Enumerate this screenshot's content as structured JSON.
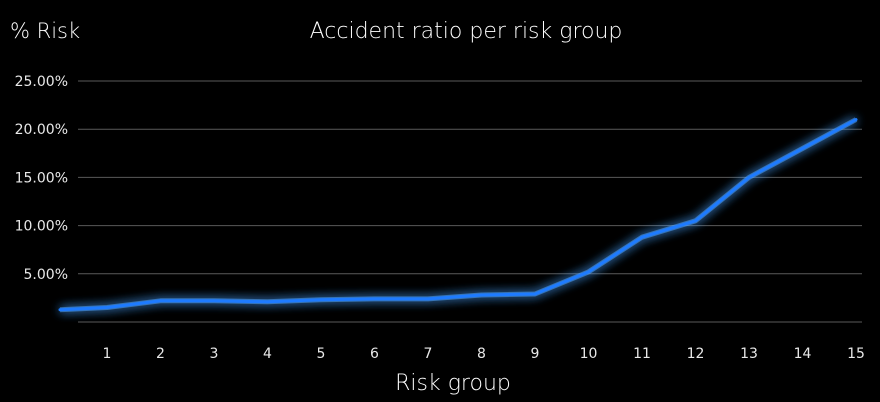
{
  "chart_data": {
    "type": "line",
    "title": "Accident ratio per risk group",
    "xlabel": "Risk group",
    "ylabel": "% Risk",
    "categories": [
      "1",
      "2",
      "3",
      "4",
      "5",
      "6",
      "7",
      "8",
      "9",
      "10",
      "11",
      "12",
      "13",
      "14",
      "15"
    ],
    "series": [
      {
        "values": [
          1.5,
          2.2,
          2.2,
          2.1,
          2.3,
          2.4,
          2.4,
          2.8,
          2.9,
          5.2,
          8.8,
          10.5,
          15.0,
          18.0,
          21.0
        ]
      }
    ],
    "yticks": [
      "5.00%",
      "10.00%",
      "15.00%",
      "20.00%",
      "25.00%"
    ],
    "ytick_values": [
      5,
      10,
      15,
      20,
      25
    ],
    "ylim": [
      0,
      25
    ],
    "grid": true,
    "line_color": "#1e7bff",
    "glow_color": "#4da3ff",
    "grid_color": "#5a5a5a",
    "background": "#000000"
  }
}
